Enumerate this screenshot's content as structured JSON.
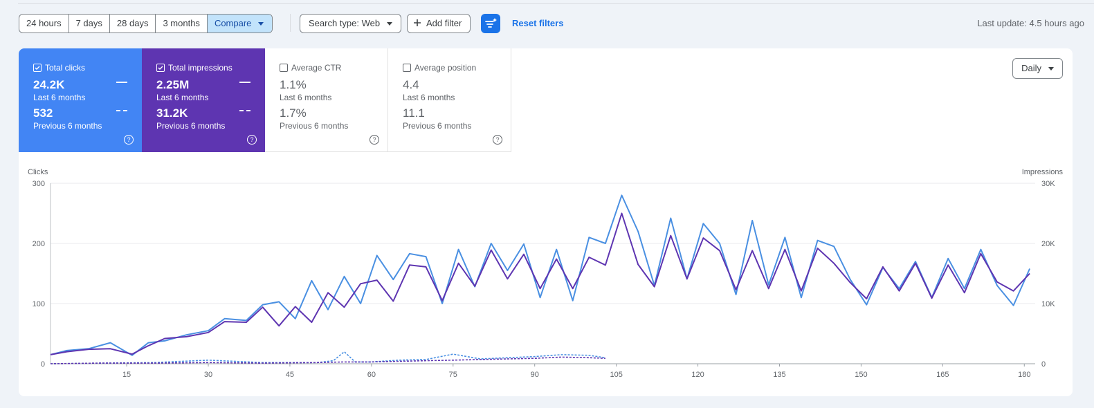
{
  "toolbar": {
    "ranges": [
      "24 hours",
      "7 days",
      "28 days",
      "3 months"
    ],
    "compare_label": "Compare",
    "search_type_label": "Search type: Web",
    "add_filter_label": "Add filter",
    "reset_label": "Reset filters",
    "last_update": "Last update: 4.5 hours ago"
  },
  "metrics": [
    {
      "name": "Total clicks",
      "checked": true,
      "current": "24.2K",
      "current_period": "Last 6 months",
      "previous": "532",
      "previous_period": "Previous 6 months",
      "color": "#4285f4"
    },
    {
      "name": "Total impressions",
      "checked": true,
      "current": "2.25M",
      "current_period": "Last 6 months",
      "previous": "31.2K",
      "previous_period": "Previous 6 months",
      "color": "#5e35b1"
    },
    {
      "name": "Average CTR",
      "checked": false,
      "current": "1.1%",
      "current_period": "Last 6 months",
      "previous": "1.7%",
      "previous_period": "Previous 6 months"
    },
    {
      "name": "Average position",
      "checked": false,
      "current": "4.4",
      "current_period": "Last 6 months",
      "previous": "11.1",
      "previous_period": "Previous 6 months"
    }
  ],
  "granularity": "Daily",
  "chart_data": {
    "type": "line",
    "ylabel_left": "Clicks",
    "ylabel_right": "Impressions",
    "yticks_left": [
      "0",
      "100",
      "200",
      "300"
    ],
    "yticks_right": [
      "0",
      "10K",
      "20K",
      "30K"
    ],
    "ylim_left": [
      0,
      300
    ],
    "ylim_right": [
      0,
      30000
    ],
    "xticks": [
      15,
      30,
      45,
      60,
      75,
      90,
      105,
      120,
      135,
      150,
      165,
      180
    ],
    "xlim": [
      1,
      182
    ],
    "grid": true,
    "series": [
      {
        "name": "Total clicks",
        "axis": "left",
        "style": "solid",
        "color": "#4a90e2",
        "x": [
          1,
          4,
          8,
          12,
          16,
          19,
          22,
          26,
          30,
          33,
          37,
          40,
          43,
          46,
          49,
          52,
          55,
          58,
          61,
          64,
          67,
          70,
          73,
          76,
          79,
          82,
          85,
          88,
          91,
          94,
          97,
          100,
          103,
          106,
          109,
          112,
          115,
          118,
          121,
          124,
          127,
          130,
          133,
          136,
          139,
          142,
          145,
          148,
          151,
          154,
          157,
          160,
          163,
          166,
          169,
          172,
          175,
          178,
          181
        ],
        "values": [
          15,
          22,
          25,
          35,
          14,
          35,
          38,
          48,
          55,
          75,
          72,
          98,
          103,
          75,
          138,
          90,
          145,
          100,
          180,
          140,
          183,
          178,
          100,
          190,
          128,
          200,
          155,
          199,
          110,
          190,
          105,
          210,
          200,
          280,
          220,
          130,
          242,
          141,
          233,
          200,
          115,
          238,
          131,
          210,
          110,
          205,
          195,
          140,
          98,
          160,
          125,
          170,
          110,
          175,
          125,
          190,
          130,
          97,
          158
        ]
      },
      {
        "name": "Total impressions",
        "axis": "right",
        "style": "solid",
        "color": "#5e35b1",
        "x": [
          1,
          4,
          8,
          12,
          16,
          19,
          22,
          26,
          30,
          33,
          37,
          40,
          43,
          46,
          49,
          52,
          55,
          58,
          61,
          64,
          67,
          70,
          73,
          76,
          79,
          82,
          85,
          88,
          91,
          94,
          97,
          100,
          103,
          106,
          109,
          112,
          115,
          118,
          121,
          124,
          127,
          130,
          133,
          136,
          139,
          142,
          145,
          148,
          151,
          154,
          157,
          160,
          163,
          166,
          169,
          172,
          175,
          178,
          181
        ],
        "values": [
          1500,
          2000,
          2400,
          2500,
          1600,
          3000,
          4200,
          4500,
          5200,
          7000,
          6900,
          9400,
          6300,
          9500,
          6900,
          11800,
          9400,
          13300,
          13900,
          10400,
          16400,
          16100,
          10500,
          16700,
          12900,
          18900,
          14100,
          18200,
          12500,
          17400,
          12500,
          17700,
          16400,
          25000,
          16500,
          12800,
          21300,
          14100,
          20900,
          18800,
          12300,
          18800,
          12500,
          19000,
          12100,
          19200,
          16700,
          13500,
          10800,
          16100,
          12100,
          16700,
          10900,
          16400,
          11800,
          18300,
          13600,
          12100,
          15000
        ]
      },
      {
        "name": "Total clicks (previous period)",
        "axis": "left",
        "style": "dashed",
        "color": "#4a90e2",
        "x": [
          1,
          10,
          20,
          30,
          40,
          50,
          53,
          55,
          57,
          60,
          65,
          70,
          75,
          80,
          85,
          90,
          95,
          100,
          103
        ],
        "values": [
          0,
          1,
          2,
          6,
          2,
          2,
          5,
          20,
          3,
          3,
          6,
          7,
          16,
          8,
          10,
          12,
          15,
          14,
          10
        ]
      },
      {
        "name": "Total impressions (previous period)",
        "axis": "right",
        "style": "dashed",
        "color": "#5e35b1",
        "x": [
          1,
          10,
          20,
          30,
          40,
          50,
          55,
          60,
          65,
          70,
          75,
          80,
          85,
          90,
          95,
          100,
          103
        ],
        "values": [
          0,
          100,
          100,
          200,
          100,
          200,
          300,
          300,
          400,
          500,
          600,
          700,
          800,
          900,
          1100,
          1000,
          900
        ]
      }
    ]
  }
}
